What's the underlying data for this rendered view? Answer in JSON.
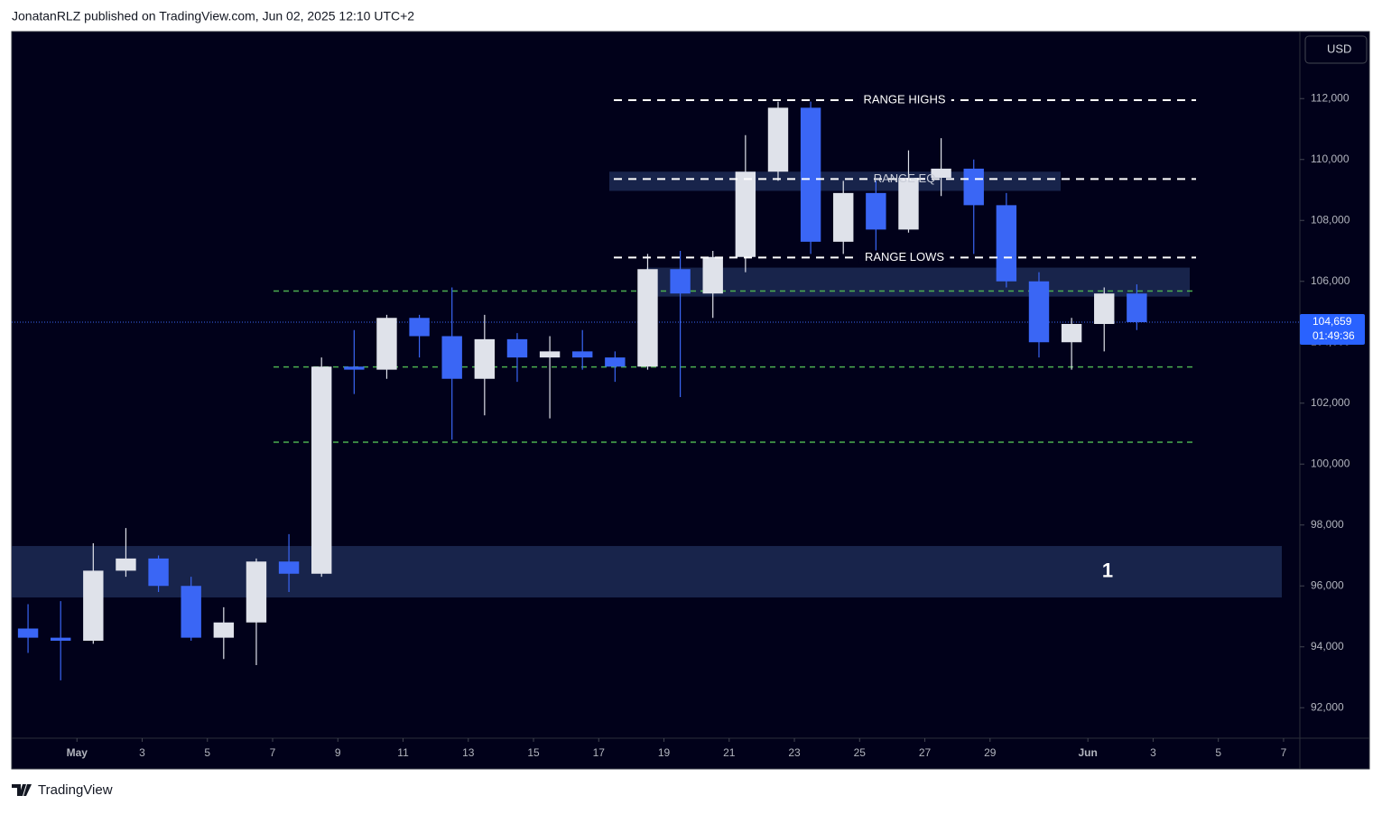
{
  "header": "JonatanRLZ published on TradingView.com, Jun 02, 2025 12:10 UTC+2",
  "footer": "TradingView",
  "chart_data": {
    "type": "candlestick",
    "currency": "USD",
    "up_color": "#dfe2ea",
    "down_color": "#3a66f5",
    "ylim": [
      91000,
      114200
    ],
    "yticks": [
      {
        "value": 92000,
        "label": "92,000"
      },
      {
        "value": 94000,
        "label": "94,000"
      },
      {
        "value": 96000,
        "label": "96,000"
      },
      {
        "value": 98000,
        "label": "98,000"
      },
      {
        "value": 100000,
        "label": "100,000"
      },
      {
        "value": 102000,
        "label": "102,000"
      },
      {
        "value": 104000,
        "label": "104,000"
      },
      {
        "value": 106000,
        "label": "106,000"
      },
      {
        "value": 108000,
        "label": "108,000"
      },
      {
        "value": 110000,
        "label": "110,000"
      },
      {
        "value": 112000,
        "label": "112,000"
      }
    ],
    "xlim": [
      "2025-04-29",
      "2025-06-07T12:00Z"
    ],
    "xticks": [
      {
        "value": "2025-05-01",
        "label": "May"
      },
      {
        "value": "2025-05-03",
        "label": "3"
      },
      {
        "value": "2025-05-05",
        "label": "5"
      },
      {
        "value": "2025-05-07",
        "label": "7"
      },
      {
        "value": "2025-05-09",
        "label": "9"
      },
      {
        "value": "2025-05-11",
        "label": "11"
      },
      {
        "value": "2025-05-13",
        "label": "13"
      },
      {
        "value": "2025-05-15",
        "label": "15"
      },
      {
        "value": "2025-05-17",
        "label": "17"
      },
      {
        "value": "2025-05-19",
        "label": "19"
      },
      {
        "value": "2025-05-21",
        "label": "21"
      },
      {
        "value": "2025-05-23",
        "label": "23"
      },
      {
        "value": "2025-05-25",
        "label": "25"
      },
      {
        "value": "2025-05-27",
        "label": "27"
      },
      {
        "value": "2025-05-29",
        "label": "29"
      },
      {
        "value": "2025-06-01",
        "label": "Jun"
      },
      {
        "value": "2025-06-03",
        "label": "3"
      },
      {
        "value": "2025-06-05",
        "label": "5"
      },
      {
        "value": "2025-06-07",
        "label": "7"
      }
    ],
    "candles": [
      {
        "x": "2025-04-29",
        "open": 94600,
        "high": 95400,
        "low": 93800,
        "close": 94300
      },
      {
        "x": "2025-04-30",
        "open": 94300,
        "high": 95500,
        "low": 92900,
        "close": 94200
      },
      {
        "x": "2025-05-01",
        "open": 94200,
        "high": 97400,
        "low": 94100,
        "close": 96500
      },
      {
        "x": "2025-05-02",
        "open": 96500,
        "high": 97900,
        "low": 96300,
        "close": 96900
      },
      {
        "x": "2025-05-03",
        "open": 96900,
        "high": 97000,
        "low": 95800,
        "close": 96000
      },
      {
        "x": "2025-05-04",
        "open": 96000,
        "high": 96300,
        "low": 94200,
        "close": 94300
      },
      {
        "x": "2025-05-05",
        "open": 94300,
        "high": 95300,
        "low": 93600,
        "close": 94800
      },
      {
        "x": "2025-05-06",
        "open": 94800,
        "high": 96900,
        "low": 93400,
        "close": 96800
      },
      {
        "x": "2025-05-07",
        "open": 96800,
        "high": 97700,
        "low": 95800,
        "close": 96400
      },
      {
        "x": "2025-05-08",
        "open": 96400,
        "high": 103500,
        "low": 96300,
        "close": 103200
      },
      {
        "x": "2025-05-09",
        "open": 103200,
        "high": 104400,
        "low": 102300,
        "close": 103100
      },
      {
        "x": "2025-05-10",
        "open": 103100,
        "high": 104900,
        "low": 102800,
        "close": 104800
      },
      {
        "x": "2025-05-11",
        "open": 104800,
        "high": 104900,
        "low": 103500,
        "close": 104200
      },
      {
        "x": "2025-05-12",
        "open": 104200,
        "high": 105800,
        "low": 100800,
        "close": 102800
      },
      {
        "x": "2025-05-13",
        "open": 102800,
        "high": 104900,
        "low": 101600,
        "close": 104100
      },
      {
        "x": "2025-05-14",
        "open": 104100,
        "high": 104300,
        "low": 102700,
        "close": 103500
      },
      {
        "x": "2025-05-15",
        "open": 103500,
        "high": 104200,
        "low": 101500,
        "close": 103700
      },
      {
        "x": "2025-05-16",
        "open": 103700,
        "high": 104400,
        "low": 103100,
        "close": 103500
      },
      {
        "x": "2025-05-17",
        "open": 103500,
        "high": 103700,
        "low": 102700,
        "close": 103200
      },
      {
        "x": "2025-05-18",
        "open": 103200,
        "high": 106900,
        "low": 103100,
        "close": 106400
      },
      {
        "x": "2025-05-19",
        "open": 106400,
        "high": 107000,
        "low": 102200,
        "close": 105600
      },
      {
        "x": "2025-05-20",
        "open": 105600,
        "high": 107000,
        "low": 104800,
        "close": 106800
      },
      {
        "x": "2025-05-21",
        "open": 106800,
        "high": 110800,
        "low": 106300,
        "close": 109600
      },
      {
        "x": "2025-05-22",
        "open": 109600,
        "high": 111900,
        "low": 109300,
        "close": 111700
      },
      {
        "x": "2025-05-23",
        "open": 111700,
        "high": 111900,
        "low": 106900,
        "close": 107300
      },
      {
        "x": "2025-05-24",
        "open": 107300,
        "high": 109300,
        "low": 106900,
        "close": 108900
      },
      {
        "x": "2025-05-25",
        "open": 108900,
        "high": 109300,
        "low": 106700,
        "close": 107700
      },
      {
        "x": "2025-05-26",
        "open": 107700,
        "high": 110300,
        "low": 107600,
        "close": 109400
      },
      {
        "x": "2025-05-27",
        "open": 109400,
        "high": 110700,
        "low": 108800,
        "close": 109700
      },
      {
        "x": "2025-05-28",
        "open": 109700,
        "high": 110000,
        "low": 106900,
        "close": 108500
      },
      {
        "x": "2025-05-29",
        "open": 108500,
        "high": 108900,
        "low": 105800,
        "close": 106000
      },
      {
        "x": "2025-05-30",
        "open": 106000,
        "high": 106300,
        "low": 103500,
        "close": 104000
      },
      {
        "x": "2025-05-31",
        "open": 104000,
        "high": 104800,
        "low": 103100,
        "close": 104600
      },
      {
        "x": "2025-06-01",
        "open": 104600,
        "high": 105800,
        "low": 103700,
        "close": 105600
      },
      {
        "x": "2025-06-02",
        "open": 105600,
        "high": 105900,
        "low": 104400,
        "close": 104659
      }
    ],
    "range_lines": [
      {
        "text": "RANGE HIGHS",
        "value": 111950
      },
      {
        "text": "RANGE EQ",
        "value": 109360
      },
      {
        "text": "RANGE LOWS",
        "value": 106780
      }
    ],
    "levels": [
      105680,
      103190,
      100720
    ],
    "zones": [
      {
        "low": 108970,
        "high": 109600
      },
      {
        "low": 105500,
        "high": 106450
      },
      {
        "low": 95620,
        "high": 97310,
        "label": "1"
      }
    ],
    "last_price": {
      "value": 104659,
      "label": "104,659"
    },
    "countdown": "01:49:36"
  }
}
